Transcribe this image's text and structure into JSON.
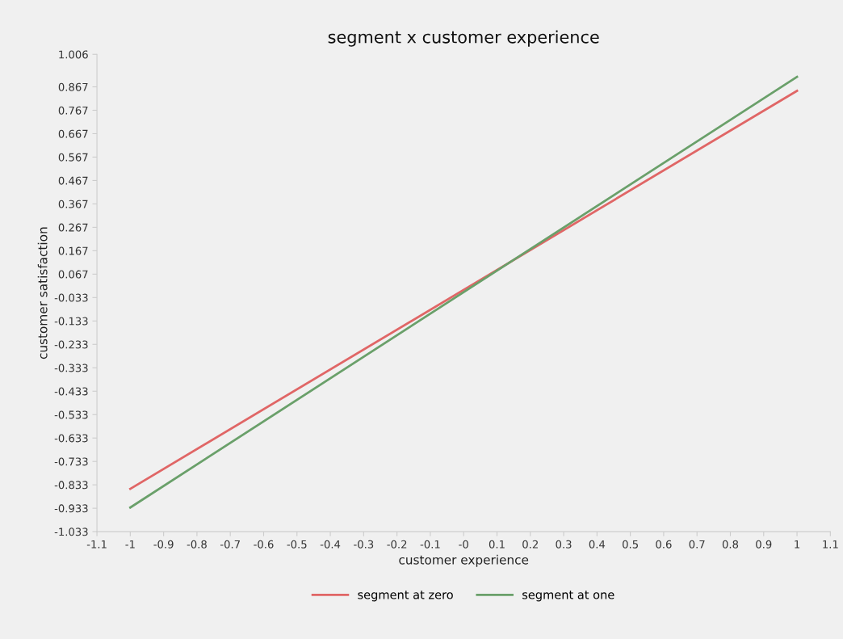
{
  "chart_data": {
    "type": "line",
    "title": "segment x customer experience",
    "xlabel": "customer experience",
    "ylabel": "customer satisfaction",
    "x": [
      -1,
      1
    ],
    "series": [
      {
        "name": "segment at zero",
        "color": "#e06666",
        "values": [
          -0.85,
          0.85
        ]
      },
      {
        "name": "segment at one",
        "color": "#6aa06a",
        "values": [
          -0.93,
          0.91
        ]
      }
    ],
    "xlim": [
      -1.1,
      1.1
    ],
    "xticks": [
      -1.1,
      -1,
      -0.9,
      -0.8,
      -0.7,
      -0.6,
      -0.5,
      -0.4,
      -0.3,
      -0.2,
      -0.1,
      {
        "value": 0,
        "label": "-0"
      },
      0.1,
      0.2,
      0.3,
      0.4,
      0.5,
      0.6,
      0.7,
      0.8,
      0.9,
      1,
      1.1
    ],
    "ylim": [
      -1.033,
      1.006
    ],
    "yticks": [
      1.006,
      0.867,
      0.767,
      0.667,
      0.567,
      0.467,
      0.367,
      0.267,
      0.167,
      0.067,
      -0.033,
      -0.133,
      -0.233,
      -0.333,
      -0.433,
      -0.533,
      -0.633,
      -0.733,
      -0.833,
      -0.933,
      -1.033
    ],
    "grid": false,
    "legend": "bottom",
    "marker": "none",
    "line_style": "solid"
  }
}
